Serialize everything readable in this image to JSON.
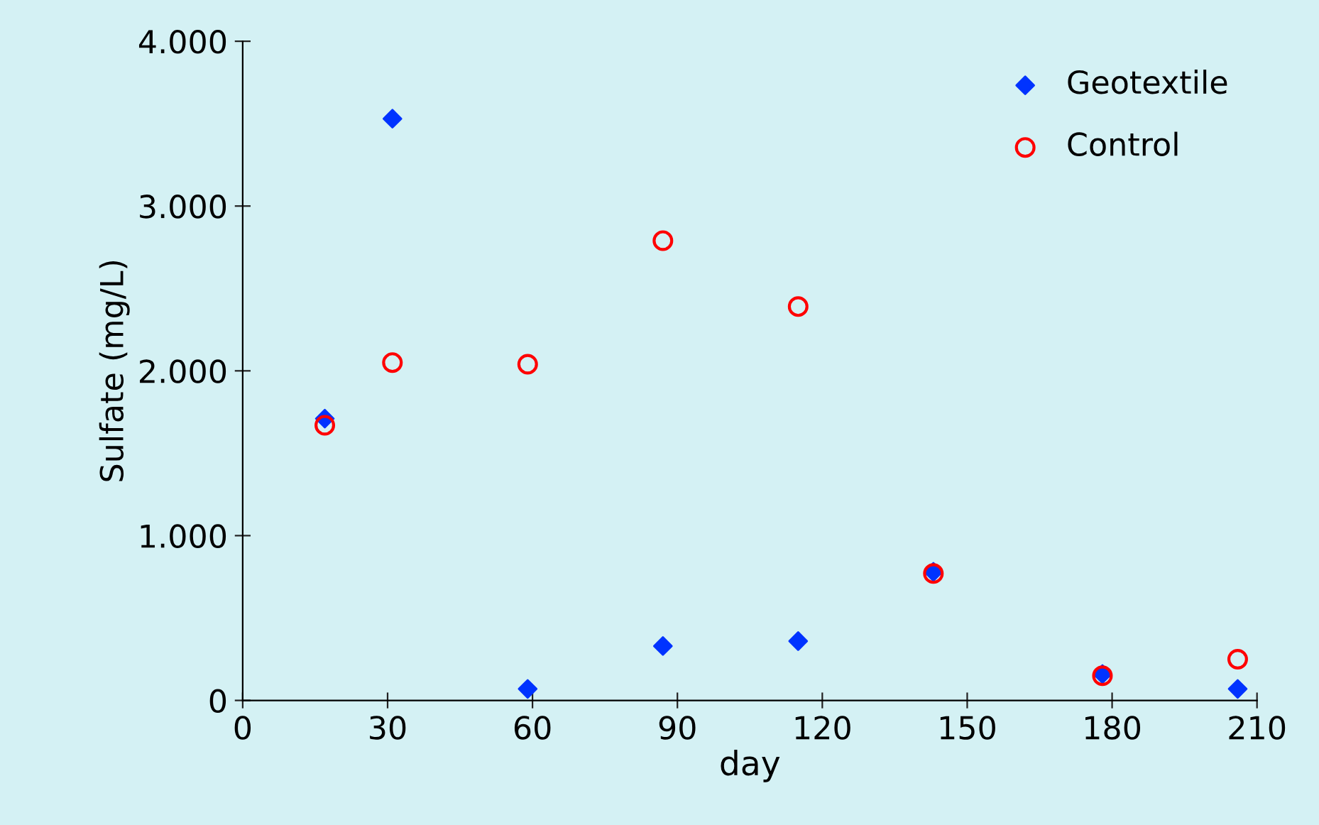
{
  "chart_data": {
    "type": "scatter",
    "xlabel": "day",
    "ylabel": "Sulfate (mg/L)",
    "xlim": [
      0,
      210
    ],
    "xticks": [
      0,
      30,
      60,
      90,
      120,
      150,
      180,
      210
    ],
    "ylim": [
      0,
      4000
    ],
    "yticks": [
      {
        "value": 0,
        "label": "0"
      },
      {
        "value": 1000,
        "label": "1.000"
      },
      {
        "value": 2000,
        "label": "2.000"
      },
      {
        "value": 3000,
        "label": "3.000"
      },
      {
        "value": 4000,
        "label": "4.000"
      }
    ],
    "grid": false,
    "legend": "top right",
    "series": [
      {
        "name": "Geotextile",
        "color": "#0033ff",
        "marker": "diamond",
        "x": [
          17,
          31,
          59,
          87,
          115,
          143,
          178,
          206
        ],
        "values": [
          1710,
          3530,
          70,
          330,
          360,
          780,
          160,
          70
        ]
      },
      {
        "name": "Control",
        "color": "#ff0000",
        "marker": "circle",
        "x": [
          17,
          31,
          59,
          87,
          115,
          143,
          178,
          206
        ],
        "values": [
          1670,
          2050,
          2040,
          2790,
          2390,
          770,
          150,
          250
        ]
      }
    ]
  }
}
